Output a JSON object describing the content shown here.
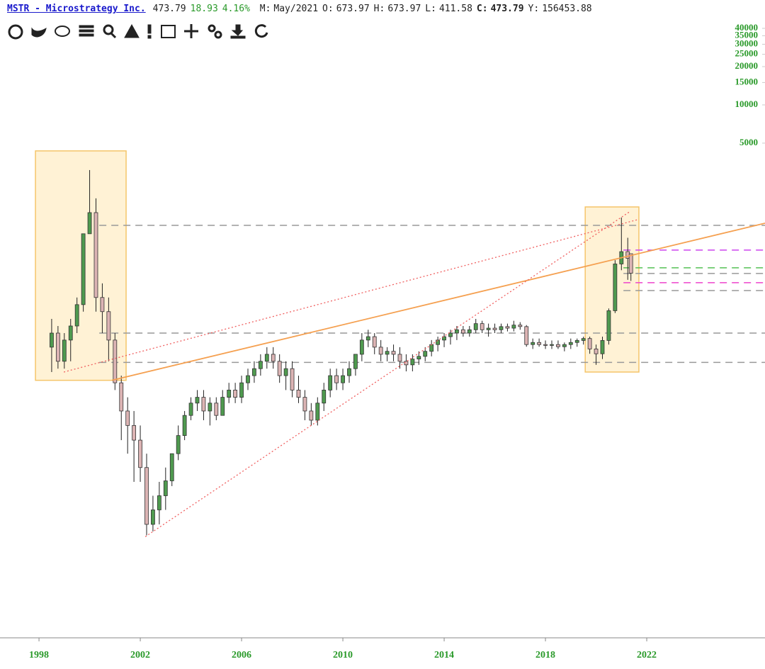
{
  "header": {
    "symbol": "MSTR - Microstrategy Inc.",
    "last": "473.79",
    "change": "18.93",
    "change_pct": "4.16%",
    "fields": [
      {
        "label": "M:",
        "value": "May/2021"
      },
      {
        "label": "O:",
        "value": "673.97"
      },
      {
        "label": "H:",
        "value": "673.97"
      },
      {
        "label": "L:",
        "value": "411.58"
      },
      {
        "label": "C:",
        "value": "473.79"
      },
      {
        "label": "Y:",
        "value": "156453.88"
      }
    ]
  },
  "chart_data": {
    "type": "candlestick",
    "log_scale": true,
    "up_color": "#4f9a4f",
    "down_color": "#dcb4b4",
    "xlim": [
      1996.46,
      2026.67
    ],
    "xticks": [
      1998,
      2002,
      2006,
      2010,
      2014,
      2018,
      2022
    ],
    "ylim": [
      0.64,
      45500
    ],
    "yticks": [
      5000,
      10000,
      15000,
      20000,
      25000,
      30000,
      35000,
      40000
    ],
    "x": [
      1998.5,
      1998.75,
      1999,
      1999.25,
      1999.5,
      1999.75,
      2000,
      2000.25,
      2000.5,
      2000.75,
      2001,
      2001.25,
      2001.5,
      2001.75,
      2002,
      2002.25,
      2002.5,
      2002.75,
      2003,
      2003.25,
      2003.5,
      2003.75,
      2004,
      2004.25,
      2004.5,
      2004.75,
      2005,
      2005.25,
      2005.5,
      2005.75,
      2006,
      2006.25,
      2006.5,
      2006.75,
      2007,
      2007.25,
      2007.5,
      2007.75,
      2008,
      2008.25,
      2008.5,
      2008.75,
      2009,
      2009.25,
      2009.5,
      2009.75,
      2010,
      2010.25,
      2010.5,
      2010.75,
      2011,
      2011.25,
      2011.5,
      2011.75,
      2012,
      2012.25,
      2012.5,
      2012.75,
      2013,
      2013.25,
      2013.5,
      2013.75,
      2014,
      2014.25,
      2014.5,
      2014.75,
      2015,
      2015.25,
      2015.5,
      2015.75,
      2016,
      2016.25,
      2016.5,
      2016.75,
      2017,
      2017.25,
      2017.5,
      2017.75,
      2018,
      2018.25,
      2018.5,
      2018.75,
      2019,
      2019.25,
      2019.5,
      2019.75,
      2020,
      2020.25,
      2020.5,
      2020.75,
      2021,
      2021.25,
      2021.375
    ],
    "open": [
      124,
      160,
      96,
      141,
      182,
      268,
      968,
      1420,
      305,
      236,
      141,
      65,
      39,
      30,
      23,
      14,
      5,
      6.5,
      8.4,
      11,
      18,
      25,
      36,
      45,
      50,
      39,
      45,
      36,
      50,
      57,
      50,
      65,
      74,
      84,
      96,
      109,
      96,
      74,
      84,
      57,
      50,
      39,
      33,
      45,
      57,
      74,
      65,
      74,
      84,
      109,
      141,
      150,
      124,
      109,
      115,
      109,
      96,
      90,
      100,
      105,
      115,
      130,
      141,
      150,
      160,
      170,
      160,
      170,
      190,
      170,
      175,
      170,
      180,
      175,
      185,
      180,
      130,
      135,
      130,
      128,
      130,
      125,
      130,
      135,
      140,
      145,
      120,
      110,
      140,
      240,
      560,
      700,
      673.97
    ],
    "high": [
      207,
      182,
      160,
      207,
      305,
      968,
      3070,
      1840,
      394,
      305,
      160,
      74,
      50,
      39,
      30,
      18,
      8.4,
      10.8,
      14,
      18,
      30,
      39,
      50,
      57,
      57,
      50,
      50,
      57,
      65,
      65,
      74,
      84,
      96,
      109,
      124,
      124,
      109,
      96,
      96,
      74,
      57,
      45,
      50,
      65,
      84,
      84,
      84,
      96,
      109,
      160,
      170,
      160,
      141,
      124,
      130,
      124,
      109,
      109,
      115,
      124,
      141,
      150,
      160,
      170,
      182,
      182,
      182,
      207,
      200,
      190,
      190,
      190,
      190,
      200,
      195,
      185,
      145,
      145,
      140,
      140,
      140,
      135,
      145,
      145,
      150,
      150,
      130,
      150,
      250,
      600,
      1300,
      900,
      673.97
    ],
    "low": [
      79,
      84,
      84,
      96,
      160,
      236,
      968,
      236,
      160,
      96,
      57,
      23,
      18,
      10.8,
      10.8,
      4.1,
      4.4,
      5,
      6.5,
      10,
      16,
      23,
      33,
      39,
      33,
      30,
      33,
      36,
      45,
      45,
      45,
      57,
      65,
      74,
      84,
      84,
      65,
      57,
      50,
      45,
      33,
      30,
      30,
      39,
      50,
      57,
      57,
      65,
      74,
      96,
      124,
      109,
      96,
      96,
      96,
      84,
      80,
      80,
      90,
      96,
      105,
      115,
      124,
      130,
      141,
      150,
      150,
      160,
      160,
      150,
      160,
      160,
      165,
      165,
      170,
      125,
      120,
      125,
      120,
      120,
      120,
      115,
      120,
      125,
      130,
      110,
      90,
      100,
      130,
      230,
      500,
      420,
      411.58
    ],
    "close": [
      160,
      96,
      141,
      182,
      268,
      968,
      1420,
      305,
      236,
      141,
      65,
      39,
      30,
      23,
      14,
      5,
      6.5,
      8.4,
      11,
      18,
      25,
      36,
      45,
      50,
      39,
      45,
      36,
      50,
      57,
      50,
      65,
      74,
      84,
      96,
      109,
      96,
      74,
      84,
      57,
      50,
      39,
      33,
      45,
      57,
      74,
      65,
      74,
      84,
      109,
      141,
      150,
      124,
      109,
      115,
      109,
      96,
      90,
      100,
      105,
      115,
      130,
      141,
      150,
      160,
      170,
      160,
      170,
      190,
      170,
      175,
      170,
      180,
      175,
      185,
      180,
      130,
      135,
      130,
      128,
      130,
      125,
      130,
      135,
      140,
      145,
      120,
      110,
      140,
      240,
      560,
      700,
      620,
      473.79
    ],
    "highlights": [
      {
        "x": [
          1997.86,
          2001.44
        ],
        "y": [
          4345,
          68
        ]
      },
      {
        "x": [
          2019.57,
          2021.69
        ],
        "y": [
          1574,
          79
        ]
      }
    ],
    "levels": [
      {
        "value": 1127,
        "start": 2000.38,
        "color": "#999999"
      },
      {
        "value": 160,
        "start": 2000.38,
        "color": "#999999"
      },
      {
        "value": 94,
        "start": 2000.38,
        "color": "#999999"
      },
      {
        "value": 720,
        "start": 2021.08,
        "color": "#cc44ee"
      },
      {
        "value": 522,
        "start": 2021.08,
        "color": "#55c055"
      },
      {
        "value": 471,
        "start": 2021.08,
        "color": "#999999"
      },
      {
        "value": 399,
        "start": 2021.08,
        "color": "#ee44cc"
      },
      {
        "value": 346,
        "start": 2021.08,
        "color": "#999999"
      }
    ],
    "trendlines": [
      {
        "x": [
          2000.88,
          2026.67
        ],
        "y": [
          68,
          1172
        ],
        "color": "#f5a050",
        "dotted": false
      },
      {
        "x": [
          1998.98,
          2021.64
        ],
        "y": [
          79,
          1250
        ],
        "color": "#f06060",
        "dotted": true
      },
      {
        "x": [
          2002.2,
          2021.36
        ],
        "y": [
          4.0,
          1459
        ],
        "color": "#f06060",
        "dotted": true
      }
    ]
  }
}
